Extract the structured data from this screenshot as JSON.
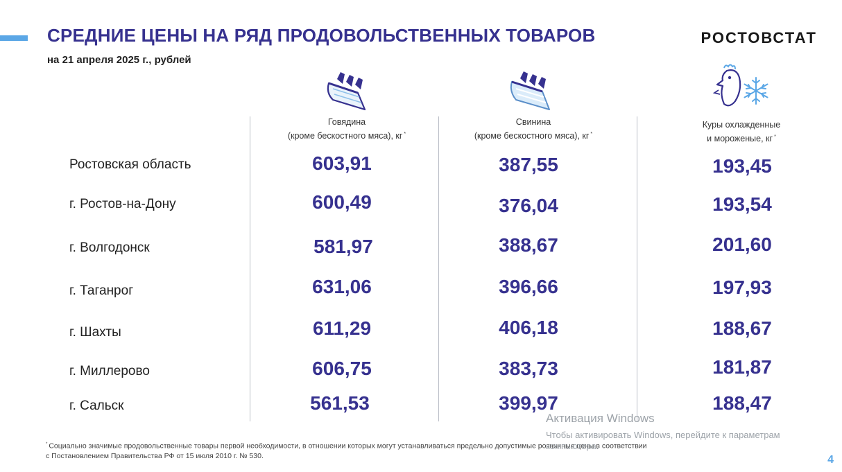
{
  "slide": {
    "title": "СРЕДНИЕ ЦЕНЫ НА РЯД ПРОДОВОЛЬСТВЕННЫХ ТОВАРОВ",
    "subtitle": "на 21 апреля 2025 г., рублей",
    "brand": "РОСТОВСТАТ",
    "page_number": "4",
    "accent_color": "#36318f",
    "bar_color": "#5ba7e6"
  },
  "columns": [
    {
      "icon": "beef-meat-icon",
      "line1": "Говядина",
      "line2": "(кроме бескостного мяса), кг",
      "mark": "*"
    },
    {
      "icon": "pork-meat-icon",
      "line1": "Свинина",
      "line2": "(кроме бескостного мяса), кг",
      "mark": "*"
    },
    {
      "icon": "chicken-frozen-icon",
      "line1": "Куры охлажденные",
      "line2": "и мороженые, кг",
      "mark": "*"
    }
  ],
  "rows": [
    {
      "label": "Ростовская область",
      "values": [
        "603,91",
        "387,55",
        "193,45"
      ]
    },
    {
      "label": "г. Ростов-на-Дону",
      "values": [
        "600,49",
        "376,04",
        "193,54"
      ]
    },
    {
      "label": "г. Волгодонск",
      "values": [
        "581,97",
        "388,67",
        "201,60"
      ]
    },
    {
      "label": "г. Таганрог",
      "values": [
        "631,06",
        "396,66",
        "197,93"
      ]
    },
    {
      "label": "г. Шахты",
      "values": [
        "611,29",
        "406,18",
        "188,67"
      ]
    },
    {
      "label": "г. Миллерово",
      "values": [
        "606,75",
        "383,73",
        "181,87"
      ]
    },
    {
      "label": "г. Сальск",
      "values": [
        "561,53",
        "399,97",
        "188,47"
      ]
    }
  ],
  "footnote": {
    "mark": "*",
    "line1": "Социально значимые продовольственные товары первой необходимости, в отношении которых могут устанавливаться предельно допустимые розничные цены в соответствии",
    "line2": "с Постановлением Правительства РФ от 15 июля 2010 г. № 530."
  },
  "watermark": {
    "title": "Активация Windows",
    "text": "Чтобы активировать Windows, перейдите к параметрам компьютера."
  }
}
